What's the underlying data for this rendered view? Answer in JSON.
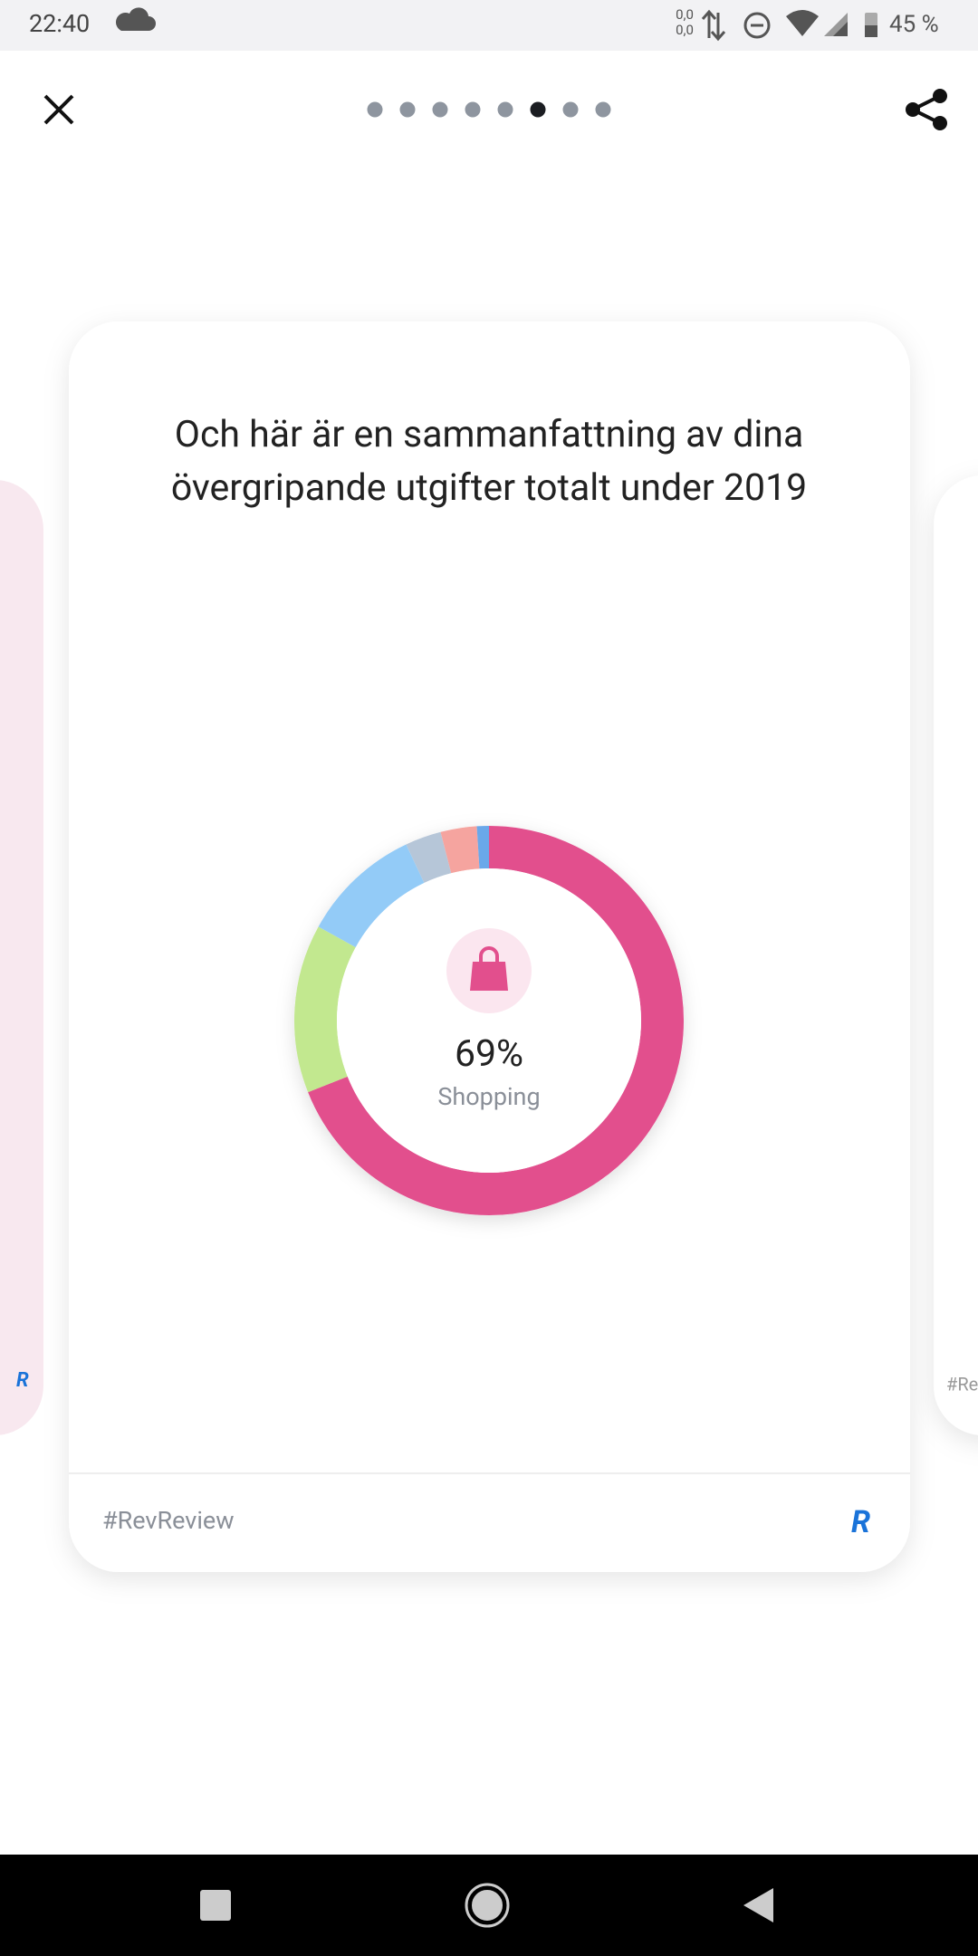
{
  "status_bar": {
    "time": "22:40",
    "data_up": "0,0",
    "data_down": "0,0",
    "battery": "45 %"
  },
  "pager": {
    "count": 8,
    "active": 5
  },
  "card": {
    "title_lines": [
      "Och här är en sammanfattning av dina",
      "övergripande utgifter totalt under 2019"
    ],
    "hashtag": "#RevReview"
  },
  "chart_data": {
    "type": "donut",
    "categories": [
      "Shopping",
      null,
      null,
      null,
      null,
      null
    ],
    "values": [
      69,
      14,
      10,
      3,
      3,
      1
    ],
    "value_labels": [
      "69%",
      null,
      null,
      null,
      null,
      null
    ],
    "colors": [
      "#e24f8d",
      "#c2e88f",
      "#93cbf7",
      "#b6c6d8",
      "#f5a49f",
      "#6aa8ea"
    ]
  }
}
